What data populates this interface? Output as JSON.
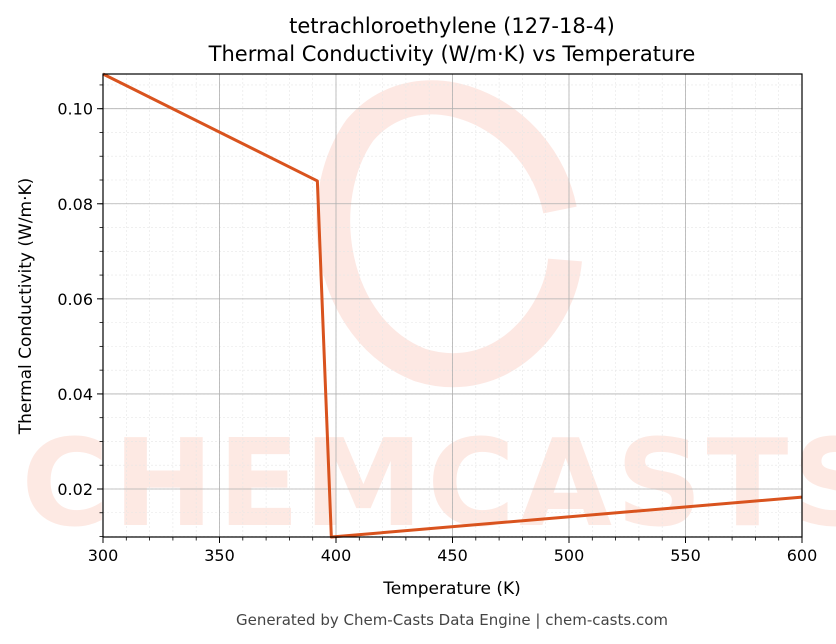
{
  "chart_data": {
    "type": "line",
    "title": "tetrachloroethylene (127-18-4)",
    "subtitle": "Thermal Conductivity (W/m·K) vs Temperature",
    "xlabel": "Temperature (K)",
    "ylabel": "Thermal Conductivity (W/m·K)",
    "xlim": [
      300,
      600
    ],
    "ylim": [
      0.0099,
      0.1073
    ],
    "xticks": [
      300,
      350,
      400,
      450,
      500,
      550,
      600
    ],
    "yticks": [
      0.02,
      0.04,
      0.06,
      0.08,
      0.1
    ],
    "xtick_labels": [
      "300",
      "350",
      "400",
      "450",
      "500",
      "550",
      "600"
    ],
    "ytick_labels": [
      "0.02",
      "0.04",
      "0.06",
      "0.08",
      "0.10"
    ],
    "grid": true,
    "series": [
      {
        "color": "#d9531e",
        "x": [
          300,
          392,
          398,
          600
        ],
        "y": [
          0.1073,
          0.0848,
          0.0099,
          0.0183
        ]
      }
    ]
  },
  "watermark": "CHEMCASTS",
  "footer": "Generated by Chem-Casts Data Engine | chem-casts.com"
}
